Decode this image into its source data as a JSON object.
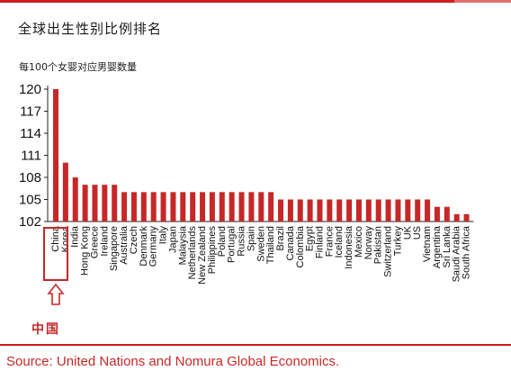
{
  "header": {
    "title": "全球出生性别比例排名",
    "unit_label": "每100个女婴对应男婴数量"
  },
  "annotation": {
    "highlight_label": "中国"
  },
  "footer": {
    "source": "Source: United Nations and Nomura Global Economics."
  },
  "colors": {
    "bar": "#c62828",
    "accent": "#cc1f1f"
  },
  "chart_data": {
    "type": "bar",
    "title": "全球出生性别比例排名",
    "ylabel": "每100个女婴对应男婴数量",
    "xlabel": "",
    "ylim": [
      102,
      120
    ],
    "yticks": [
      120,
      117,
      114,
      111,
      108,
      105,
      102
    ],
    "grid": false,
    "categories": [
      "China",
      "Korea",
      "India",
      "Hong Kong",
      "Greece",
      "Ireland",
      "Singapore",
      "Australia",
      "Czech",
      "Denmark",
      "Germany",
      "Italy",
      "Japan",
      "Malaysia",
      "Netherlands",
      "New Zealand",
      "Philippines",
      "Poland",
      "Portugal",
      "Russia",
      "Spain",
      "Sweden",
      "Thailand",
      "Brazil",
      "Canada",
      "Colombia",
      "Egypt",
      "Finland",
      "France",
      "Iceland",
      "Indonesia",
      "Mexico",
      "Norway",
      "Pakistan",
      "Switzerland",
      "Turkey",
      "UK",
      "US",
      "Vietnam",
      "Argentina",
      "Sri Lanka",
      "Saudi Arabia",
      "South Africa"
    ],
    "values": [
      120,
      110,
      108,
      107,
      107,
      107,
      107,
      106,
      106,
      106,
      106,
      106,
      106,
      106,
      106,
      106,
      106,
      106,
      106,
      106,
      106,
      106,
      106,
      105,
      105,
      105,
      105,
      105,
      105,
      105,
      105,
      105,
      105,
      105,
      105,
      105,
      105,
      105,
      105,
      104,
      104,
      103,
      103
    ],
    "highlight_category": "China"
  }
}
